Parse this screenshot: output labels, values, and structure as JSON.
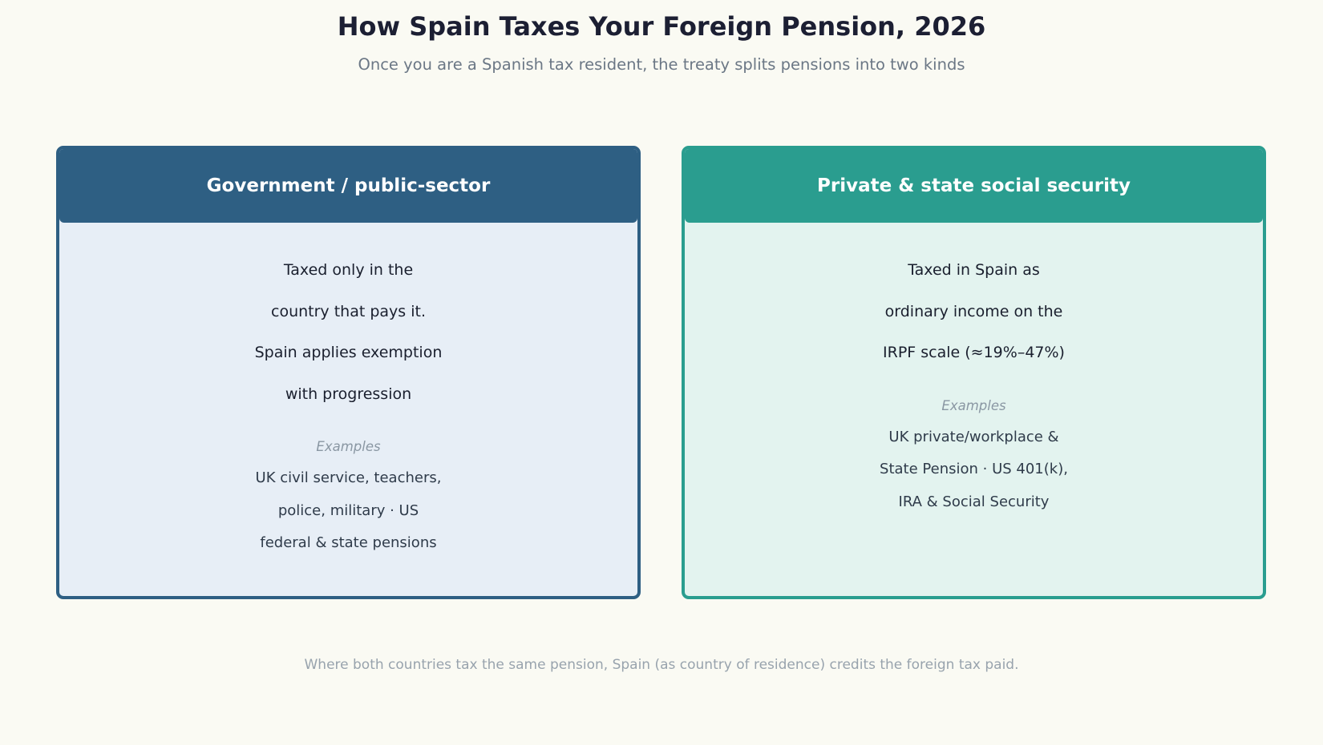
{
  "title": "How Spain Taxes Your Foreign Pension, 2026",
  "subtitle": "Once you are a Spanish tax resident, the treaty splits pensions into two kinds",
  "colors": {
    "government": "#2e5f83",
    "private": "#2a9d8f",
    "background": "#fafaf3"
  },
  "cards": [
    {
      "header": "Government / public-sector",
      "description_lines": [
        "Taxed only in the",
        "country that pays it.",
        "Spain applies exemption",
        "with progression"
      ],
      "examples_label": "Examples",
      "examples_lines": [
        "UK civil service, teachers,",
        "police, military · US",
        "federal & state pensions"
      ]
    },
    {
      "header": "Private & state social security",
      "description_lines": [
        "Taxed in Spain as",
        "ordinary income on the",
        "IRPF scale (≈19%–47%)"
      ],
      "examples_label": "Examples",
      "examples_lines": [
        "UK private/workplace &",
        "State Pension · US 401(k),",
        "IRA & Social Security"
      ]
    }
  ],
  "footnote": "Where both countries tax the same pension, Spain (as country of residence) credits the foreign tax paid."
}
